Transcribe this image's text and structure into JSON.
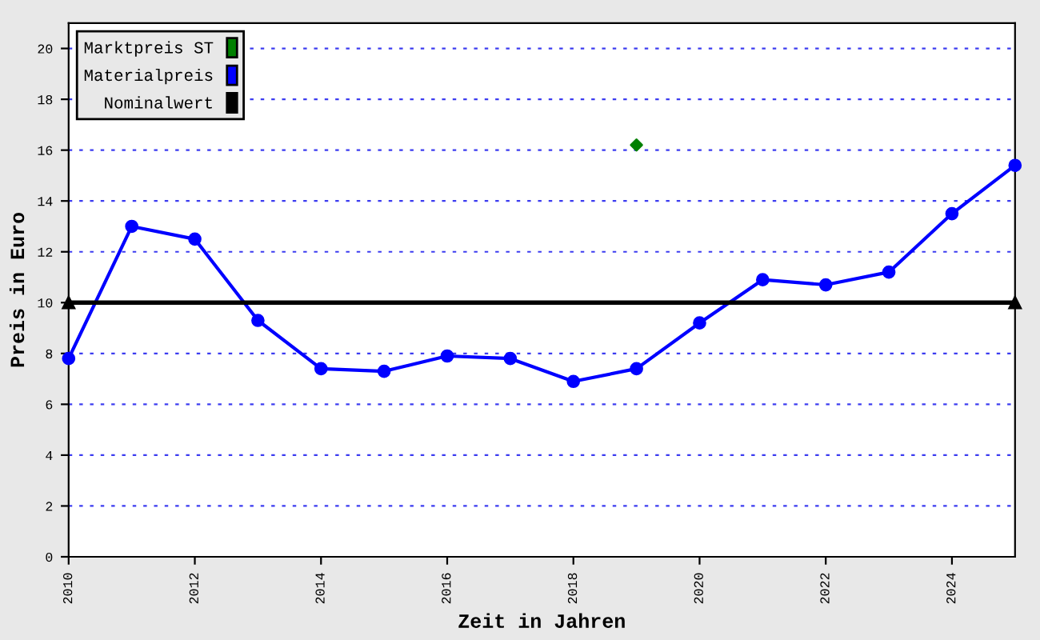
{
  "chart_data": {
    "type": "line",
    "xlabel": "Zeit in Jahren",
    "ylabel": "Preis in Euro",
    "xlim": [
      2010,
      2025
    ],
    "xticks": [
      2010,
      2012,
      2014,
      2016,
      2018,
      2020,
      2022,
      2024
    ],
    "ylim": [
      0,
      21
    ],
    "yticks": [
      0,
      2,
      4,
      6,
      8,
      10,
      12,
      14,
      16,
      18,
      20
    ],
    "grid": "y",
    "legend": "top left",
    "series": [
      {
        "name": "Marktpreis ST",
        "color": "#008000",
        "type": "scatter",
        "marker": "diamond",
        "x": [
          2019
        ],
        "values": [
          16.2
        ]
      },
      {
        "name": "Materialpreis",
        "color": "#0000ff",
        "marker": "circle",
        "x": [
          2010,
          2011,
          2012,
          2013,
          2014,
          2015,
          2016,
          2017,
          2018,
          2019,
          2020,
          2021,
          2022,
          2023,
          2024,
          2025
        ],
        "values": [
          7.8,
          13.0,
          12.5,
          9.3,
          7.4,
          7.3,
          7.9,
          7.8,
          6.9,
          7.4,
          9.2,
          10.9,
          10.7,
          11.2,
          13.5,
          15.4
        ]
      },
      {
        "name": "Nominalwert",
        "color": "#000000",
        "marker": "triangle",
        "x": [
          2010,
          2025
        ],
        "values": [
          10,
          10
        ]
      }
    ]
  }
}
